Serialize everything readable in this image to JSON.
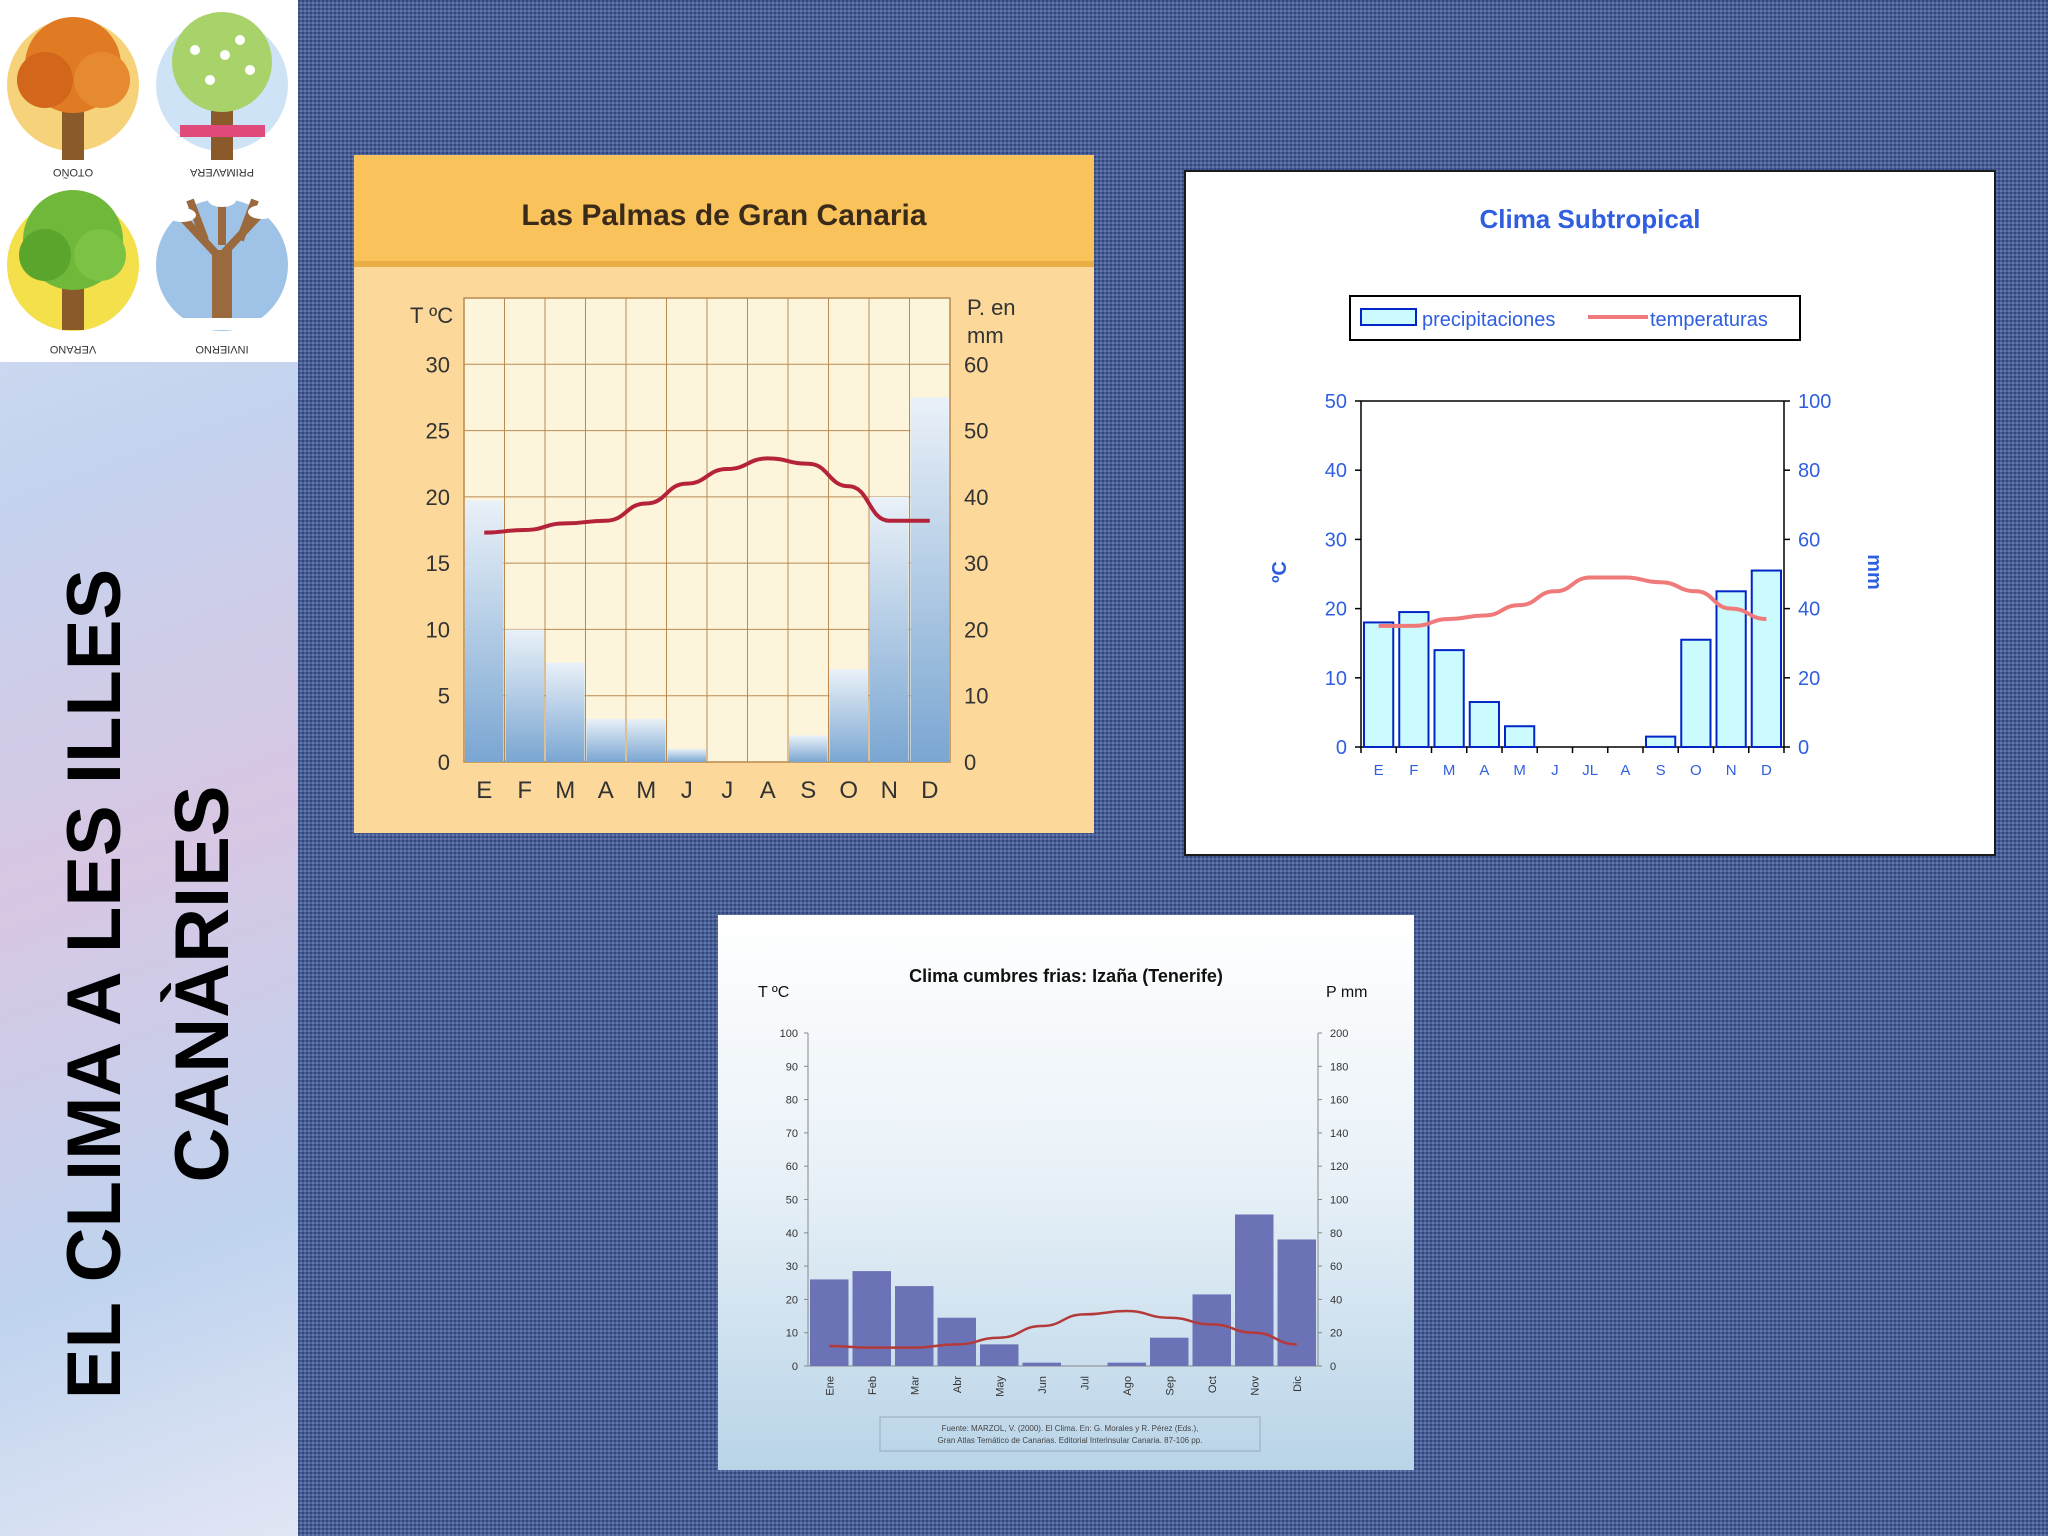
{
  "sidebar": {
    "title": "EL CLIMA A LES ILLES CANÀRIES",
    "seasons": {
      "otono": "OTOÑO",
      "primavera": "PRIMAVERA",
      "verano": "VERANO",
      "invierno": "INVIERNO"
    }
  },
  "chart_data": [
    {
      "type": "bar",
      "title": "Las Palmas de Gran Canaria",
      "categories": [
        "E",
        "F",
        "M",
        "A",
        "M",
        "J",
        "J",
        "A",
        "S",
        "O",
        "N",
        "D"
      ],
      "ylabel": "T ºC",
      "y2label_line1": "P. en",
      "y2label_line2": "mm",
      "ylim": [
        0,
        35
      ],
      "y2lim": [
        0,
        70
      ],
      "yticks": [
        "0",
        "5",
        "10",
        "15",
        "20",
        "25",
        "30"
      ],
      "y2ticks": [
        "0",
        "10",
        "20",
        "30",
        "40",
        "50",
        "60"
      ],
      "grid": true,
      "series": [
        {
          "kind": "bar",
          "axis": "right",
          "values": [
            39.5,
            20,
            15,
            6.5,
            6.5,
            2,
            0,
            0,
            4,
            14,
            40,
            55
          ]
        },
        {
          "kind": "line",
          "axis": "left",
          "values": [
            17.3,
            17.5,
            18,
            18.2,
            19.5,
            21,
            22.1,
            22.9,
            22.5,
            20.8,
            18.2,
            18.2
          ]
        }
      ],
      "colors": {
        "bar": "#8fb3d9",
        "line": "#b4233a",
        "header": "#f9c25a",
        "plot_bg": "#fdf4dc",
        "grid": "#b98a4f"
      }
    },
    {
      "type": "bar",
      "title": "Clima Subtropical",
      "categories": [
        "E",
        "F",
        "M",
        "A",
        "M",
        "J",
        "JL",
        "A",
        "S",
        "O",
        "N",
        "D"
      ],
      "ylabel": "ºC",
      "y2label": "mm",
      "ylim": [
        0,
        50
      ],
      "y2lim": [
        0,
        100
      ],
      "yticks": [
        "0",
        "10",
        "20",
        "30",
        "40",
        "50"
      ],
      "y2ticks": [
        "0",
        "20",
        "40",
        "60",
        "80",
        "100"
      ],
      "grid": false,
      "legend": {
        "position": "top",
        "items": [
          "precipitaciones",
          "temperaturas"
        ]
      },
      "series": [
        {
          "name": "precipitaciones",
          "kind": "bar",
          "axis": "right",
          "values": [
            36,
            39,
            28,
            13,
            6,
            0,
            0,
            0,
            3,
            31,
            45,
            51
          ]
        },
        {
          "name": "temperaturas",
          "kind": "line",
          "axis": "left",
          "values": [
            17.5,
            17.5,
            18.5,
            19,
            20.5,
            22.5,
            24.5,
            24.5,
            23.8,
            22.5,
            20,
            18.5
          ]
        }
      ],
      "colors": {
        "bar": "#ccfbfd",
        "bar_edge": "#0026c8",
        "line": "#f07a7a",
        "text": "#2f5fe0"
      }
    },
    {
      "type": "bar",
      "title": "Clima cumbres frias: Izaña (Tenerife)",
      "categories": [
        "Ene",
        "Feb",
        "Mar",
        "Abr",
        "May",
        "Jun",
        "Jul",
        "Ago",
        "Sep",
        "Oct",
        "Nov",
        "Dic"
      ],
      "ylabel": "T ºC",
      "y2label": "P mm",
      "ylim": [
        0,
        100
      ],
      "y2lim": [
        0,
        200
      ],
      "yticks": [
        "0",
        "10",
        "20",
        "30",
        "40",
        "50",
        "60",
        "70",
        "80",
        "90",
        "100"
      ],
      "y2ticks": [
        "0",
        "20",
        "40",
        "60",
        "80",
        "100",
        "120",
        "140",
        "160",
        "180",
        "200"
      ],
      "grid": false,
      "series": [
        {
          "kind": "bar",
          "axis": "right",
          "values": [
            52,
            57,
            48,
            29,
            13,
            2,
            0,
            2,
            17,
            43,
            91,
            76
          ]
        },
        {
          "kind": "line",
          "axis": "left",
          "values": [
            6,
            5.5,
            5.5,
            6.5,
            8.5,
            12,
            15.5,
            16.5,
            14.5,
            12.5,
            10,
            6.5
          ]
        }
      ],
      "source_line1": "Fuente: MARZOL, V. (2000). El Clima. En: G. Morales y R. Pérez (Eds.),",
      "source_line2": "Gran Atlas Temático de Canarias. Editorial Interinsular Canaria. 87-106 pp.",
      "colors": {
        "bar": "#6b73b6",
        "line": "#b43a3a"
      }
    }
  ]
}
